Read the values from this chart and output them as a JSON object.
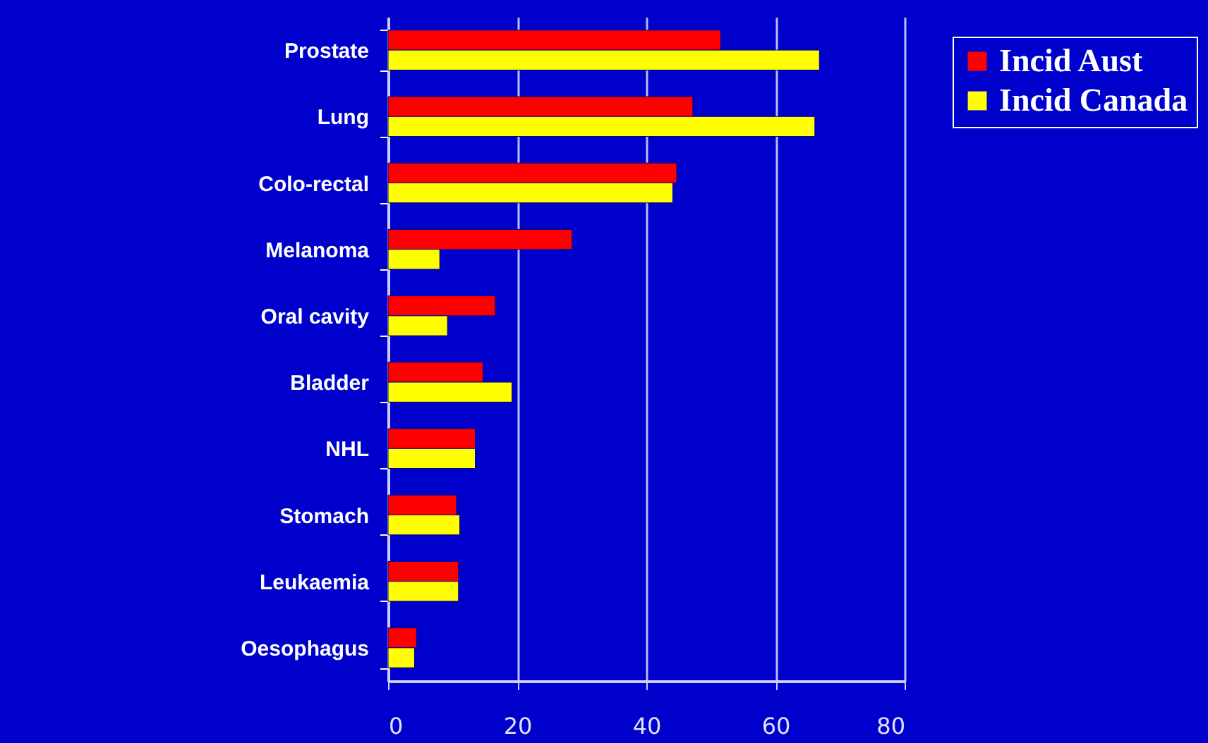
{
  "chart_data": {
    "type": "bar",
    "orientation": "horizontal",
    "categories": [
      "Prostate",
      "Lung",
      "Colo-rectal",
      "Melanoma",
      "Oral cavity",
      "Bladder",
      "NHL",
      "Stomach",
      "Leukaemia",
      "Oesophagus"
    ],
    "series": [
      {
        "name": "Incid Aust",
        "color": "#ff0000",
        "values": [
          51.5,
          47.2,
          44.7,
          28.5,
          16.6,
          14.7,
          13.5,
          10.6,
          10.9,
          4.4
        ]
      },
      {
        "name": "Incid Canada",
        "color": "#ffff00",
        "values": [
          66.8,
          66.1,
          44.1,
          8.0,
          9.2,
          19.2,
          13.5,
          11.1,
          10.9,
          4.1
        ]
      }
    ],
    "xlim": [
      0,
      80
    ],
    "xticks": [
      0,
      20,
      40,
      60,
      80
    ],
    "grid": "x",
    "legend": "top right"
  }
}
